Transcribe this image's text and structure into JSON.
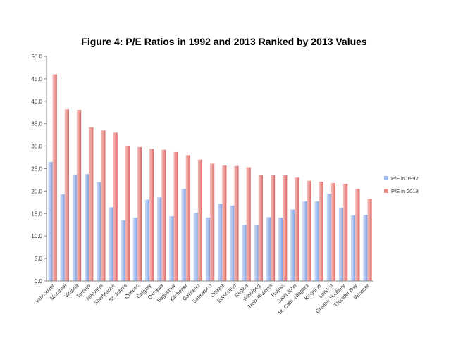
{
  "chart_data": {
    "type": "bar",
    "title": "Figure 4: P/E Ratios in 1992 and 2013 Ranked by 2013 Values",
    "xlabel": "",
    "ylabel": "",
    "ylim": [
      0,
      50
    ],
    "yticks": [
      "0.0",
      "5.0",
      "10.0",
      "15.0",
      "20.0",
      "25.0",
      "30.0",
      "35.0",
      "40.0",
      "45.0",
      "50.0"
    ],
    "grid": false,
    "legend_position": "right",
    "categories": [
      "Vancouver",
      "Montreal",
      "Victoria",
      "Toronto",
      "Hamilton",
      "Sherbrooke",
      "St. John's",
      "Quebec",
      "Calgary",
      "Oshawa",
      "Saguenay",
      "Kitchener",
      "Gatineau",
      "Saskatoon",
      "Ottawa",
      "Edmonton",
      "Regina",
      "Winnipeg",
      "Trois-Rivieres",
      "Halifax",
      "Saint John",
      "St. Cath.-Niagara",
      "Kingston",
      "London",
      "Greater Sudbury",
      "Thunder Bay",
      "Windsor"
    ],
    "series": [
      {
        "name": "P/E in 1992",
        "color": "#9db8ea",
        "values": [
          26.5,
          19.3,
          23.7,
          23.8,
          22.0,
          16.4,
          13.5,
          14.1,
          18.1,
          18.6,
          14.4,
          20.5,
          15.2,
          14.1,
          17.2,
          16.8,
          12.5,
          12.4,
          14.2,
          14.1,
          15.9,
          17.7,
          17.7,
          19.4,
          16.3,
          14.6,
          14.7
        ]
      },
      {
        "name": "P/E in 2013",
        "color": "#e88a88",
        "values": [
          46.0,
          38.2,
          38.1,
          34.2,
          33.5,
          33.0,
          30.0,
          29.8,
          29.4,
          29.2,
          28.7,
          28.0,
          27.0,
          26.1,
          25.7,
          25.6,
          25.3,
          23.6,
          23.5,
          23.5,
          23.0,
          22.3,
          22.1,
          21.8,
          21.6,
          20.5,
          18.3
        ]
      }
    ]
  }
}
